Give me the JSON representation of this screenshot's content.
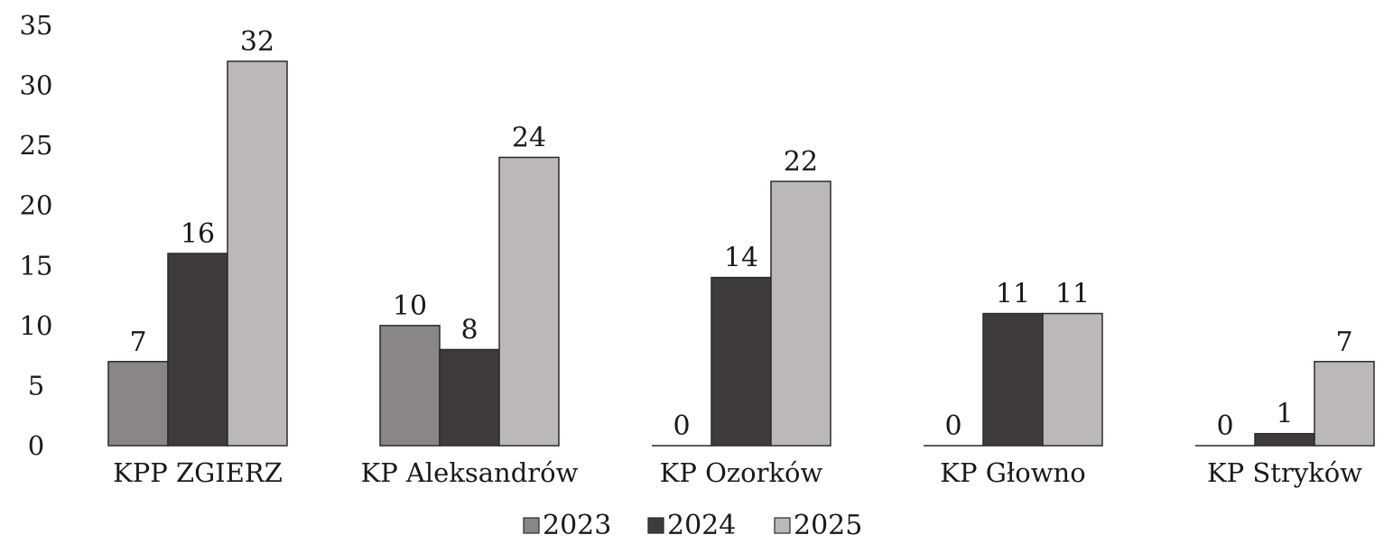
{
  "chart_data": {
    "type": "bar",
    "title": "",
    "xlabel": "",
    "ylabel": "",
    "ylim": [
      0,
      35
    ],
    "yticks": [
      "0",
      "5",
      "10",
      "15",
      "20",
      "25",
      "30",
      "35"
    ],
    "grid": false,
    "legend_position": "bottom",
    "categories": [
      "KPP ZGIERZ",
      "KP Aleksandrów",
      "KP Ozorków",
      "KP Głowno",
      "KP Stryków"
    ],
    "series": [
      {
        "name": "2023",
        "color": "#8a8587",
        "values": [
          7,
          10,
          0,
          0,
          0
        ]
      },
      {
        "name": "2024",
        "color": "#3f3b3c",
        "values": [
          16,
          8,
          14,
          11,
          1
        ]
      },
      {
        "name": "2025",
        "color": "#bcb8b9",
        "values": [
          32,
          24,
          22,
          11,
          7
        ]
      }
    ]
  }
}
